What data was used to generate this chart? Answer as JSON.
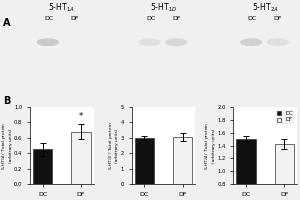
{
  "categories": [
    "DC",
    "DF"
  ],
  "bar1_values": [
    0.45,
    0.68
  ],
  "bar1_errors": [
    0.08,
    0.1
  ],
  "bar1_ylim": [
    0.0,
    1.0
  ],
  "bar1_yticks": [
    0.0,
    0.2,
    0.4,
    0.6,
    0.8,
    1.0
  ],
  "bar2_values": [
    3.0,
    3.05
  ],
  "bar2_errors": [
    0.15,
    0.28
  ],
  "bar2_ylim": [
    0,
    5
  ],
  "bar2_yticks": [
    0,
    1,
    2,
    3,
    4,
    5
  ],
  "bar3_values": [
    1.5,
    1.42
  ],
  "bar3_errors": [
    0.05,
    0.08
  ],
  "bar3_ylim": [
    0.8,
    2.0
  ],
  "bar3_yticks": [
    0.8,
    1.0,
    1.2,
    1.4,
    1.6,
    1.8,
    2.0
  ],
  "bar_colors": [
    "#111111",
    "#f2f2f2"
  ],
  "bar_edgecolor": "#333333",
  "significance_1a": "*",
  "legend_labels": [
    "DC",
    "DF"
  ],
  "legend_colors": [
    "#111111",
    "#f2f2f2"
  ],
  "gel1_bg": "#aaaaaa",
  "gel2_bg": "#111111",
  "gel3_bg": "#aaaaaa",
  "gel1_band1": "#c8c8c8",
  "gel1_band2": "#f0f0f0",
  "gel2_band1": "#e0e0e0",
  "gel2_band2": "#d8d8d8",
  "gel3_band1": "#d0d0d0",
  "gel3_band2": "#e0e0e0",
  "fig_bg": "#f0f0f0"
}
